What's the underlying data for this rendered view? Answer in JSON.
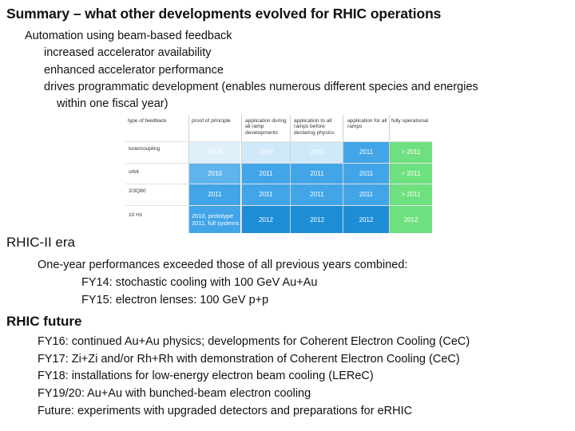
{
  "title": "Summary – what other developments evolved for RHIC operations",
  "automation": {
    "heading": "Automation using beam-based feedback",
    "bullets": [
      "increased accelerator availability",
      "enhanced accelerator performance",
      "drives programmatic development (enables numerous different species and energies",
      "within one fiscal year)"
    ]
  },
  "table": {
    "headers": [
      "type of feedback",
      "proof of principle",
      "application during all ramp developments",
      "application to all ramps before declaring physics",
      "application for all ramps",
      "fully operational"
    ],
    "rows": [
      {
        "label": "tune/coupling",
        "cells": [
          "2006",
          "2009",
          "2010",
          "2011",
          "> 2011"
        ]
      },
      {
        "label": "orbit",
        "cells": [
          "2010",
          "2011",
          "2011",
          "2011",
          "> 2011"
        ]
      },
      {
        "label": "2/3Q80",
        "cells": [
          "2011",
          "2011",
          "2011",
          "2011",
          "> 2011"
        ]
      },
      {
        "label": "10 Hz",
        "cells": [
          "2010, prototype 2011, full systems",
          "2012",
          "2012",
          "2012",
          "2012"
        ]
      }
    ],
    "colors": {
      "light": "#dff0fb",
      "mid": "#42a5e8",
      "dark": "#1d8ed6",
      "green": "#6fe07f"
    }
  },
  "era": {
    "heading": "RHIC-II era",
    "lines": [
      "One-year performances exceeded those of all previous years combined:",
      "FY14: stochastic cooling with 100 GeV Au+Au",
      "FY15: electron lenses: 100 GeV p+p"
    ]
  },
  "future": {
    "heading": "RHIC future",
    "lines": [
      "FY16: continued Au+Au physics; developments for Coherent Electron Cooling (CeC)",
      "FY17: Zi+Zi and/or Rh+Rh with demonstration of Coherent Electron Cooling (CeC)",
      "FY18: installations for low-energy electron beam cooling (LEReC)",
      "FY19/20: Au+Au with bunched-beam electron cooling",
      "Future: experiments with upgraded detectors and preparations for eRHIC"
    ]
  }
}
